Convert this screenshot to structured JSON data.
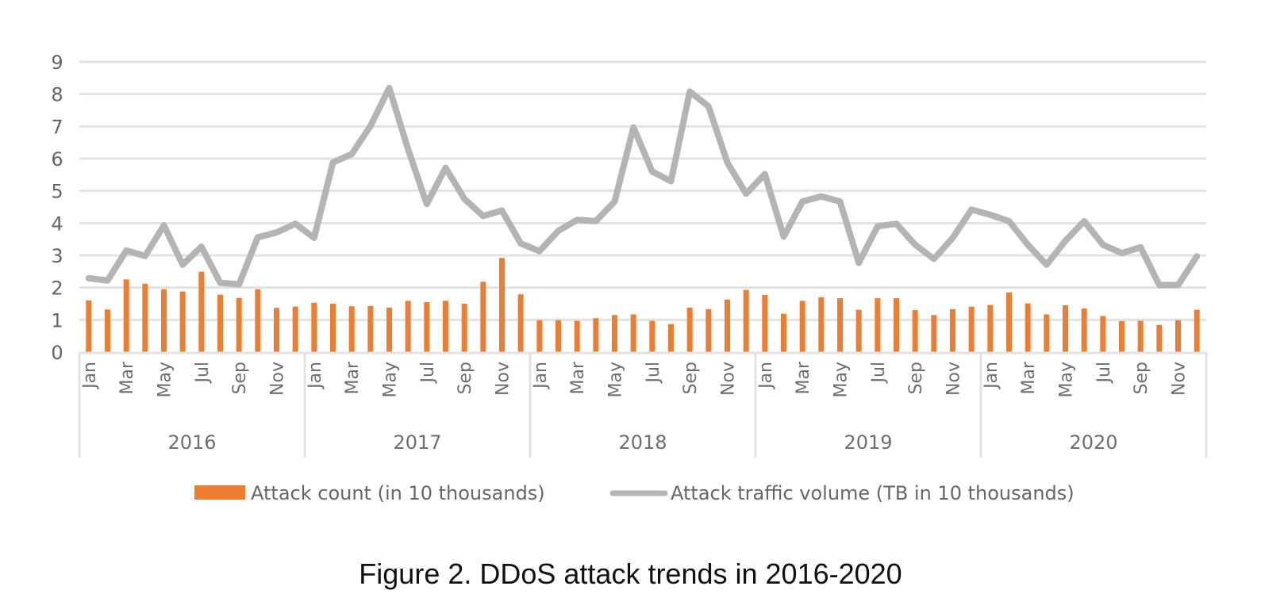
{
  "caption": "Figure 2.  DDoS attack trends in 2016-2020",
  "colors": {
    "bar": "#ED7D31",
    "line": "#B4B4B4",
    "grid": "#E3E3E3",
    "axis_text": "#6f6f6f"
  },
  "chart_data": {
    "type": "bar+line",
    "title": "",
    "xlabel": "",
    "ylabel": "",
    "ylim": [
      0,
      9
    ],
    "yticks": [
      0,
      1,
      2,
      3,
      4,
      5,
      6,
      7,
      8,
      9
    ],
    "grid": true,
    "legend_position": "bottom",
    "years": [
      "2016",
      "2017",
      "2018",
      "2019",
      "2020"
    ],
    "months": [
      "Jan",
      "Feb",
      "Mar",
      "Apr",
      "May",
      "Jun",
      "Jul",
      "Aug",
      "Sep",
      "Oct",
      "Nov",
      "Dec"
    ],
    "month_tick_labels": [
      "Jan",
      "",
      "Mar",
      "",
      "May",
      "",
      "Jul",
      "",
      "Sep",
      "",
      "Nov",
      ""
    ],
    "series": [
      {
        "name": "Attack count (in 10 thousands)",
        "type": "bar",
        "values": [
          1.6,
          1.32,
          2.25,
          2.12,
          1.95,
          1.88,
          2.49,
          1.78,
          1.68,
          1.95,
          1.37,
          1.41,
          1.53,
          1.5,
          1.42,
          1.43,
          1.38,
          1.59,
          1.55,
          1.59,
          1.5,
          2.18,
          2.92,
          1.79,
          0.99,
          0.99,
          0.97,
          1.05,
          1.15,
          1.17,
          0.97,
          0.87,
          1.38,
          1.33,
          1.63,
          1.93,
          1.77,
          1.19,
          1.59,
          1.7,
          1.67,
          1.31,
          1.67,
          1.67,
          1.3,
          1.15,
          1.33,
          1.41,
          1.46,
          1.85,
          1.51,
          1.17,
          1.45,
          1.35,
          1.12,
          0.96,
          0.97,
          0.84,
          0.99,
          1.31
        ]
      },
      {
        "name": "Attack traffic volume (TB in 10 thousands)",
        "type": "line",
        "values": [
          2.29,
          2.22,
          3.15,
          2.98,
          3.93,
          2.71,
          3.27,
          2.15,
          2.1,
          3.56,
          3.71,
          3.98,
          3.54,
          5.88,
          6.14,
          7.01,
          8.19,
          6.29,
          4.59,
          5.72,
          4.75,
          4.22,
          4.39,
          3.37,
          3.13,
          3.76,
          4.1,
          4.06,
          4.67,
          6.97,
          5.6,
          5.3,
          8.08,
          7.62,
          5.88,
          4.91,
          5.52,
          3.58,
          4.67,
          4.83,
          4.67,
          2.77,
          3.9,
          3.98,
          3.33,
          2.89,
          3.54,
          4.42,
          4.26,
          4.06,
          3.33,
          2.71,
          3.45,
          4.06,
          3.33,
          3.07,
          3.25,
          2.08,
          2.08,
          2.97
        ]
      }
    ]
  }
}
